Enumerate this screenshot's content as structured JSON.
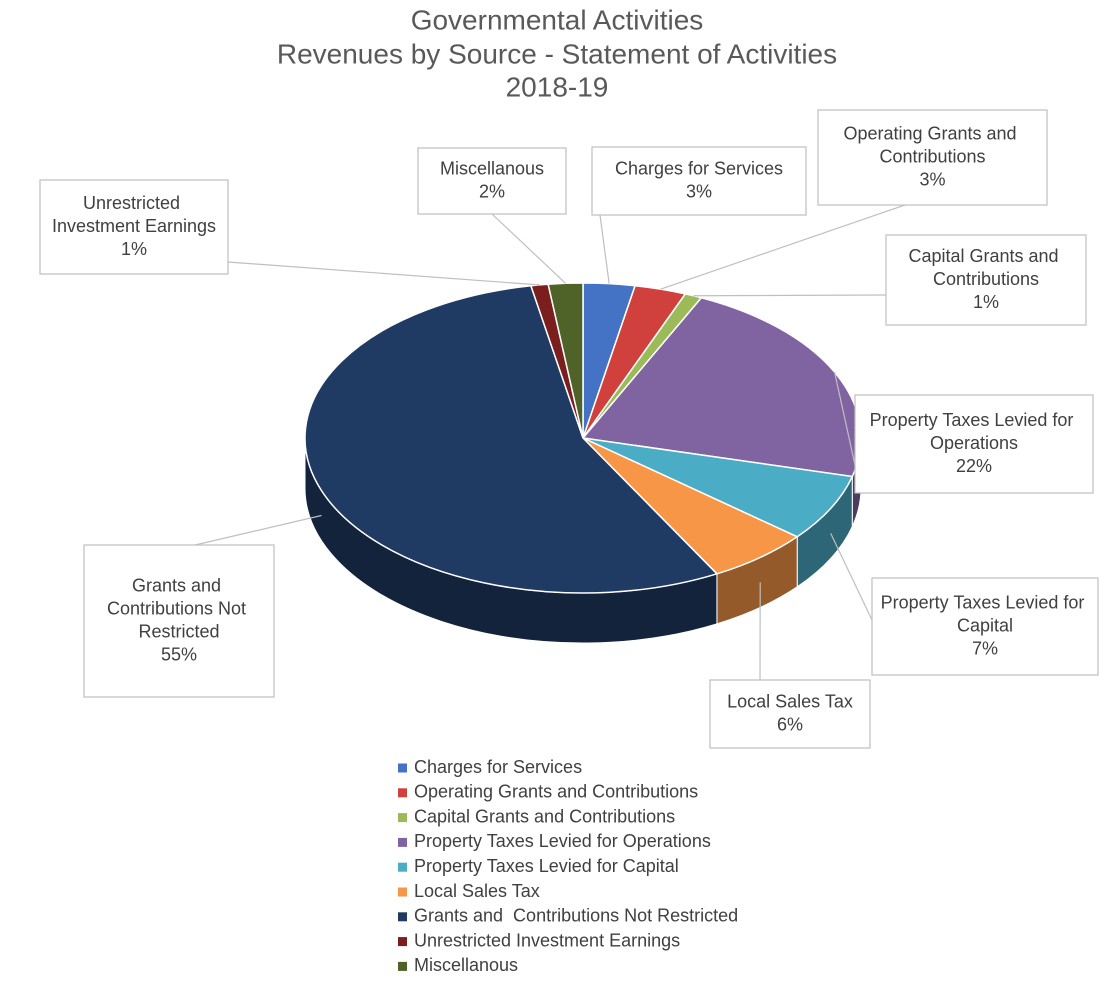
{
  "chart_data": {
    "type": "pie3d",
    "title": [
      "Governmental Activities",
      "Revenues by Source - Statement of Activities",
      "2018-19"
    ],
    "categories": [
      "Charges for Services",
      "Operating Grants and Contributions",
      "Capital Grants and Contributions",
      "Property Taxes Levied for Operations",
      "Property Taxes Levied for Capital",
      "Local Sales Tax",
      "Grants and  Contributions Not Restricted",
      "Unrestricted Investment Earnings",
      "Miscellanous"
    ],
    "values": [
      3,
      3,
      1,
      22,
      7,
      6,
      55,
      1,
      2
    ],
    "value_labels": [
      "3%",
      "3%",
      "1%",
      "22%",
      "7%",
      "6%",
      "55%",
      "1%",
      "2%"
    ],
    "colors": [
      "#4472c4",
      "#d0413e",
      "#9bbb59",
      "#8064a2",
      "#4bacc6",
      "#f79646",
      "#1f3b63",
      "#7a1e1e",
      "#4f6228"
    ],
    "legend": "bottom"
  }
}
